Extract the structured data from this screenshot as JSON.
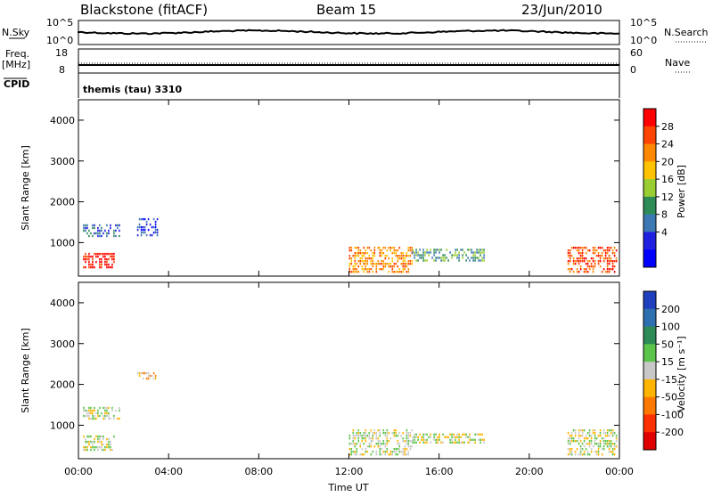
{
  "header": {
    "title": "Blackstone (fitACF)",
    "beam": "Beam 15",
    "date": "23/Jun/2010"
  },
  "status_panels": {
    "nsky_label": "N.Sky",
    "nsearch_label": "N.Search",
    "nsky_ticks": [
      "10^5",
      "10^0"
    ],
    "nsearch_ticks": [
      "10^5",
      "10^0"
    ],
    "freq_label": "Freq.",
    "freq_unit": "[MHz]",
    "freq_ticks": [
      "18",
      "8"
    ],
    "nave_label": "Nave",
    "nave_ticks": [
      "60",
      "0"
    ],
    "cpid_label": "CPID",
    "cpid_value": "themis (tau) 3310"
  },
  "chart_data": [
    {
      "type": "heatmap",
      "name": "power",
      "ylabel": "Slant Range [km]",
      "xlabel": "",
      "xlim": [
        0,
        24
      ],
      "ylim": [
        180,
        4500
      ],
      "yticks": [
        1000,
        2000,
        3000,
        4000
      ],
      "xticks": [
        0,
        4,
        8,
        12,
        16,
        20,
        24
      ],
      "colorbar": {
        "label": "Power [dB]",
        "ticks": [
          "28",
          "24",
          "20",
          "16",
          "12",
          "8",
          "4"
        ],
        "colors": [
          "#ff0000",
          "#ff4400",
          "#ff8800",
          "#ffc200",
          "#9acd32",
          "#2e8b57",
          "#3c78b4",
          "#2020e0",
          "#0000ff"
        ]
      },
      "regions": [
        {
          "t": [
            0.2,
            1.8
          ],
          "r": [
            1150,
            1450
          ],
          "level": 2
        },
        {
          "t": [
            0.2,
            1.6
          ],
          "r": [
            380,
            750
          ],
          "level": 8
        },
        {
          "t": [
            2.6,
            3.5
          ],
          "r": [
            1200,
            1600
          ],
          "level": 1
        },
        {
          "t": [
            12.0,
            14.8
          ],
          "r": [
            250,
            900
          ],
          "level": 6
        },
        {
          "t": [
            14.8,
            18.0
          ],
          "r": [
            550,
            850
          ],
          "level": 3
        },
        {
          "t": [
            21.7,
            23.9
          ],
          "r": [
            300,
            900
          ],
          "level": 7
        }
      ]
    },
    {
      "type": "heatmap",
      "name": "velocity",
      "ylabel": "Slant Range [km]",
      "xlabel": "Time UT",
      "xlim": [
        0,
        24
      ],
      "ylim": [
        180,
        4500
      ],
      "yticks": [
        1000,
        2000,
        3000,
        4000
      ],
      "xticks": [
        0,
        4,
        8,
        12,
        16,
        20,
        24
      ],
      "xtick_labels": [
        "00:00",
        "04:00",
        "08:00",
        "12:00",
        "16:00",
        "20:00",
        "00:00"
      ],
      "colorbar": {
        "label": "Velocity [m s⁻¹]",
        "ticks": [
          "200",
          "100",
          "50",
          "15",
          "-15",
          "-50",
          "-100",
          "-200"
        ],
        "colors": [
          "#1f3fbf",
          "#2e6fb0",
          "#2e8b57",
          "#5cc44a",
          "#c8c8c8",
          "#ffb400",
          "#ff7800",
          "#ff3000",
          "#e00000"
        ]
      },
      "regions": [
        {
          "t": [
            0.2,
            1.8
          ],
          "r": [
            1150,
            1450
          ],
          "level": 4
        },
        {
          "t": [
            0.2,
            1.6
          ],
          "r": [
            380,
            750
          ],
          "level": 4
        },
        {
          "t": [
            2.6,
            3.4
          ],
          "r": [
            2150,
            2300
          ],
          "level": 3
        },
        {
          "t": [
            12.0,
            14.8
          ],
          "r": [
            300,
            900
          ],
          "level": 4
        },
        {
          "t": [
            14.8,
            18.0
          ],
          "r": [
            600,
            800
          ],
          "level": 4
        },
        {
          "t": [
            21.7,
            23.9
          ],
          "r": [
            300,
            900
          ],
          "level": 4
        }
      ]
    }
  ]
}
